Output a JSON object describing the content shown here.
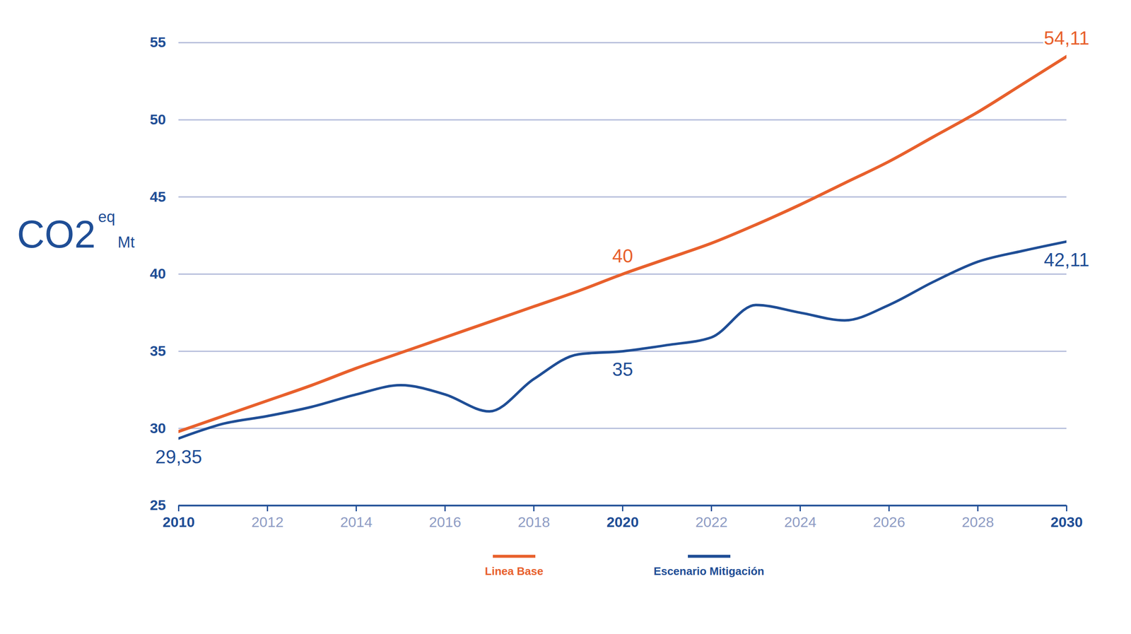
{
  "chart_data": {
    "type": "line",
    "y_label": "CO2 eq Mt",
    "x": [
      2010,
      2011,
      2012,
      2013,
      2014,
      2015,
      2016,
      2017,
      2018,
      2019,
      2020,
      2021,
      2022,
      2023,
      2024,
      2025,
      2026,
      2027,
      2028,
      2029,
      2030
    ],
    "series": [
      {
        "name": "Linea Base",
        "color": "#e8602c",
        "values": [
          29.8,
          30.8,
          31.8,
          32.8,
          33.9,
          34.9,
          35.9,
          36.9,
          37.9,
          38.9,
          40,
          41.0,
          42.0,
          43.2,
          44.5,
          45.9,
          47.3,
          48.9,
          50.5,
          52.3,
          54.11
        ]
      },
      {
        "name": "Escenario Mitigación",
        "color": "#1f4e96",
        "values": [
          29.35,
          30.3,
          30.8,
          31.4,
          32.2,
          32.8,
          32.2,
          31.1,
          33.2,
          34.8,
          35,
          35.4,
          35.9,
          38.0,
          37.5,
          37.0,
          38.0,
          39.5,
          40.8,
          41.5,
          42.11
        ]
      }
    ],
    "annotations": [
      {
        "series": "Escenario Mitigación",
        "x": 2010,
        "y": 29.35,
        "label": "29,35"
      },
      {
        "series": "Linea Base",
        "x": 2020,
        "y": 40,
        "label": "40"
      },
      {
        "series": "Escenario Mitigación",
        "x": 2020,
        "y": 35,
        "label": "35"
      },
      {
        "series": "Linea Base",
        "x": 2030,
        "y": 54.11,
        "label": "54,11"
      },
      {
        "series": "Escenario Mitigación",
        "x": 2030,
        "y": 42.11,
        "label": "42,11"
      }
    ],
    "xlim": [
      2010,
      2030
    ],
    "xticks": [
      2010,
      2012,
      2014,
      2016,
      2018,
      2020,
      2022,
      2024,
      2026,
      2028,
      2030
    ],
    "ylim": [
      25,
      55
    ],
    "yticks": [
      25,
      30,
      35,
      40,
      45,
      50,
      55
    ],
    "grid": true,
    "legend": "bottom"
  }
}
